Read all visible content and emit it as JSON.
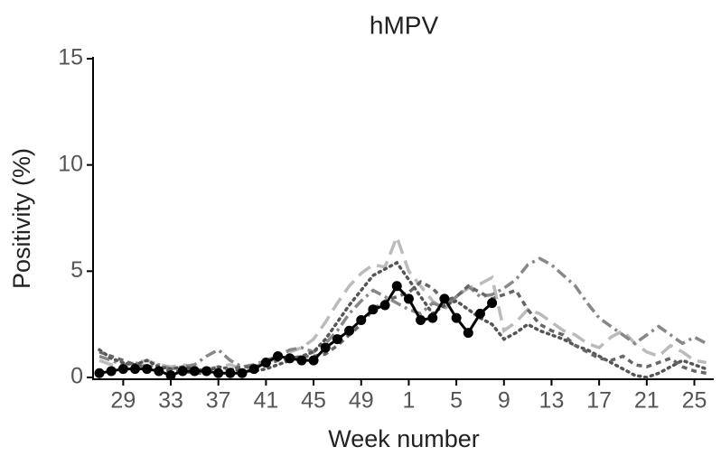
{
  "chart_data": {
    "type": "line",
    "title": "hMPV",
    "x_label": "Week number",
    "y_label": "Positivity (%)",
    "categories": [
      null,
      null,
      29,
      null,
      null,
      null,
      33,
      null,
      null,
      null,
      37,
      null,
      null,
      null,
      41,
      null,
      null,
      null,
      45,
      null,
      null,
      null,
      49,
      null,
      null,
      null,
      1,
      null,
      null,
      null,
      5,
      null,
      null,
      null,
      9,
      null,
      null,
      null,
      13,
      null,
      null,
      null,
      17,
      null,
      null,
      null,
      21,
      null,
      null,
      null,
      25,
      null
    ],
    "ylim": [
      0,
      15
    ],
    "yticks": [
      0,
      5,
      10,
      15
    ],
    "series": [
      {
        "color": "#bbbbbb",
        "style": "longdash",
        "values": [
          0.8,
          0.6,
          0.5,
          0.7,
          0.8,
          0.6,
          0.5,
          0.6,
          0.5,
          0.4,
          0.5,
          0.6,
          0.4,
          0.5,
          0.7,
          0.9,
          1.2,
          1.4,
          1.8,
          2.6,
          3.5,
          4.3,
          4.9,
          5.3,
          5.2,
          6.6,
          5.0,
          4.3,
          3.6,
          3.2,
          3.8,
          4.2,
          4.4,
          4.7,
          2.2,
          2.6,
          3.2,
          3.0,
          2.6,
          2.2,
          2.0,
          1.6,
          1.4,
          1.9,
          2.2,
          1.6,
          1.2,
          1.0,
          1.5,
          1.2,
          0.8,
          0.7
        ]
      },
      {
        "color": "#888888",
        "style": "dashdot",
        "values": [
          1.0,
          0.8,
          0.6,
          0.7,
          0.5,
          0.6,
          0.4,
          0.5,
          0.6,
          1.0,
          1.3,
          0.8,
          0.5,
          0.6,
          0.8,
          1.0,
          1.3,
          1.4,
          1.2,
          1.6,
          2.2,
          3.0,
          3.6,
          4.1,
          3.8,
          3.5,
          3.2,
          3.0,
          3.5,
          3.3,
          3.8,
          4.3,
          3.8,
          3.9,
          4.2,
          4.6,
          5.3,
          5.6,
          5.3,
          4.8,
          4.3,
          3.5,
          2.8,
          2.4,
          2.0,
          1.6,
          2.0,
          2.4,
          2.0,
          1.6,
          1.9,
          1.6
        ]
      },
      {
        "color": "#555555",
        "style": "dot",
        "values": [
          1.3,
          0.9,
          0.7,
          0.6,
          0.8,
          0.5,
          0.4,
          0.5,
          0.4,
          0.3,
          0.5,
          0.4,
          0.3,
          0.3,
          0.4,
          0.6,
          0.8,
          1.0,
          1.2,
          1.8,
          2.6,
          3.4,
          4.1,
          4.8,
          5.1,
          5.4,
          4.6,
          3.8,
          3.0,
          3.4,
          3.6,
          3.2,
          2.8,
          2.5,
          1.8,
          2.1,
          2.5,
          2.2,
          2.0,
          1.8,
          1.5,
          1.3,
          1.0,
          0.7,
          0.4,
          0.1,
          0.0,
          0.2,
          0.5,
          0.8,
          0.6,
          0.4
        ]
      },
      {
        "color": "#666666",
        "style": "dash",
        "values": [
          1.2,
          1.0,
          0.8,
          0.6,
          0.5,
          0.4,
          0.3,
          0.3,
          0.2,
          0.2,
          0.3,
          0.4,
          0.5,
          0.5,
          0.6,
          0.8,
          0.9,
          1.0,
          1.0,
          1.1,
          1.5,
          2.0,
          2.5,
          3.2,
          3.6,
          3.8,
          4.0,
          4.5,
          4.2,
          3.6,
          3.8,
          4.3,
          4.0,
          3.7,
          3.9,
          4.1,
          3.2,
          2.5,
          2.2,
          2.0,
          1.5,
          1.2,
          0.9,
          0.8,
          1.0,
          0.6,
          0.5,
          0.7,
          0.9,
          0.5,
          0.3,
          0.2
        ]
      },
      {
        "color": "#000000",
        "style": "solid",
        "markers": true,
        "values": [
          0.2,
          0.3,
          0.4,
          0.4,
          0.4,
          0.3,
          0.1,
          0.3,
          0.3,
          0.3,
          0.2,
          0.2,
          0.2,
          0.4,
          0.7,
          1.0,
          0.9,
          0.8,
          0.8,
          1.4,
          1.8,
          2.2,
          2.7,
          3.2,
          3.4,
          4.3,
          3.7,
          2.7,
          2.8,
          3.7,
          2.8,
          2.1,
          3.0,
          3.5,
          null,
          null,
          null,
          null,
          null,
          null,
          null,
          null,
          null,
          null,
          null,
          null,
          null,
          null,
          null,
          null,
          null,
          null
        ]
      }
    ]
  }
}
